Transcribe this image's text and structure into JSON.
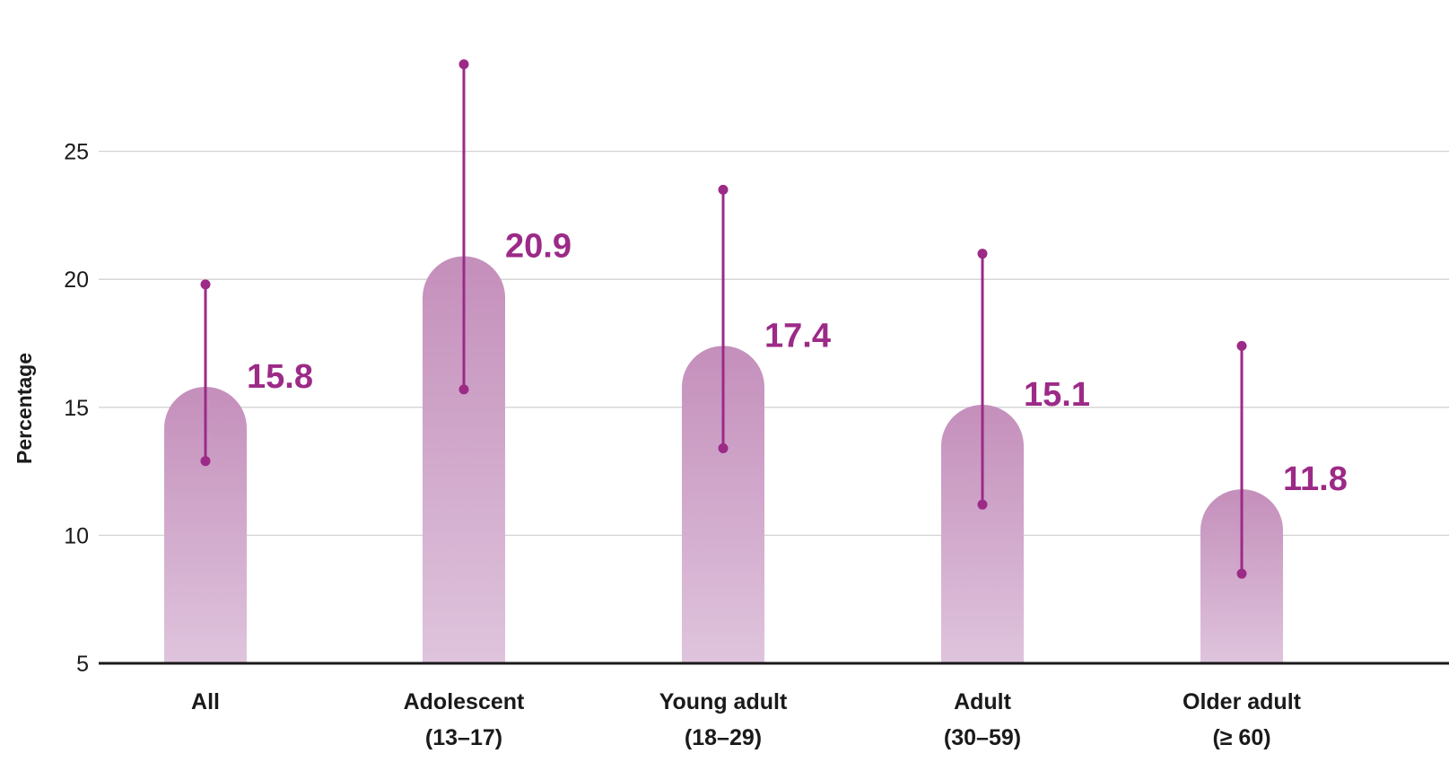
{
  "chart_data": {
    "type": "bar",
    "ylabel": "Percentage",
    "xlabel": "",
    "ylim": [
      5,
      29
    ],
    "yticks": [
      5,
      10,
      15,
      20,
      25
    ],
    "grid": true,
    "legend": "none",
    "categories": [
      {
        "line1": "All",
        "line2": ""
      },
      {
        "line1": "Adolescent",
        "line2": "(13–17)"
      },
      {
        "line1": "Young adult",
        "line2": "(18–29)"
      },
      {
        "line1": "Adult",
        "line2": "(30–59)"
      },
      {
        "line1": "Older adult",
        "line2": "(≥ 60)"
      }
    ],
    "values": [
      15.8,
      20.9,
      17.4,
      15.1,
      11.8
    ],
    "value_labels": [
      "15.8",
      "20.9",
      "17.4",
      "15.1",
      "11.8"
    ],
    "ci_lower": [
      12.9,
      15.7,
      13.4,
      11.2,
      8.5
    ],
    "ci_upper": [
      19.8,
      28.4,
      23.5,
      21.0,
      17.4
    ],
    "colors": {
      "bar_top": "#c48fbb",
      "bar_bottom": "#dfc4dd",
      "accent": "#9c2a87",
      "grid": "#d3d3d3",
      "axis": "#1a1a1a"
    }
  }
}
